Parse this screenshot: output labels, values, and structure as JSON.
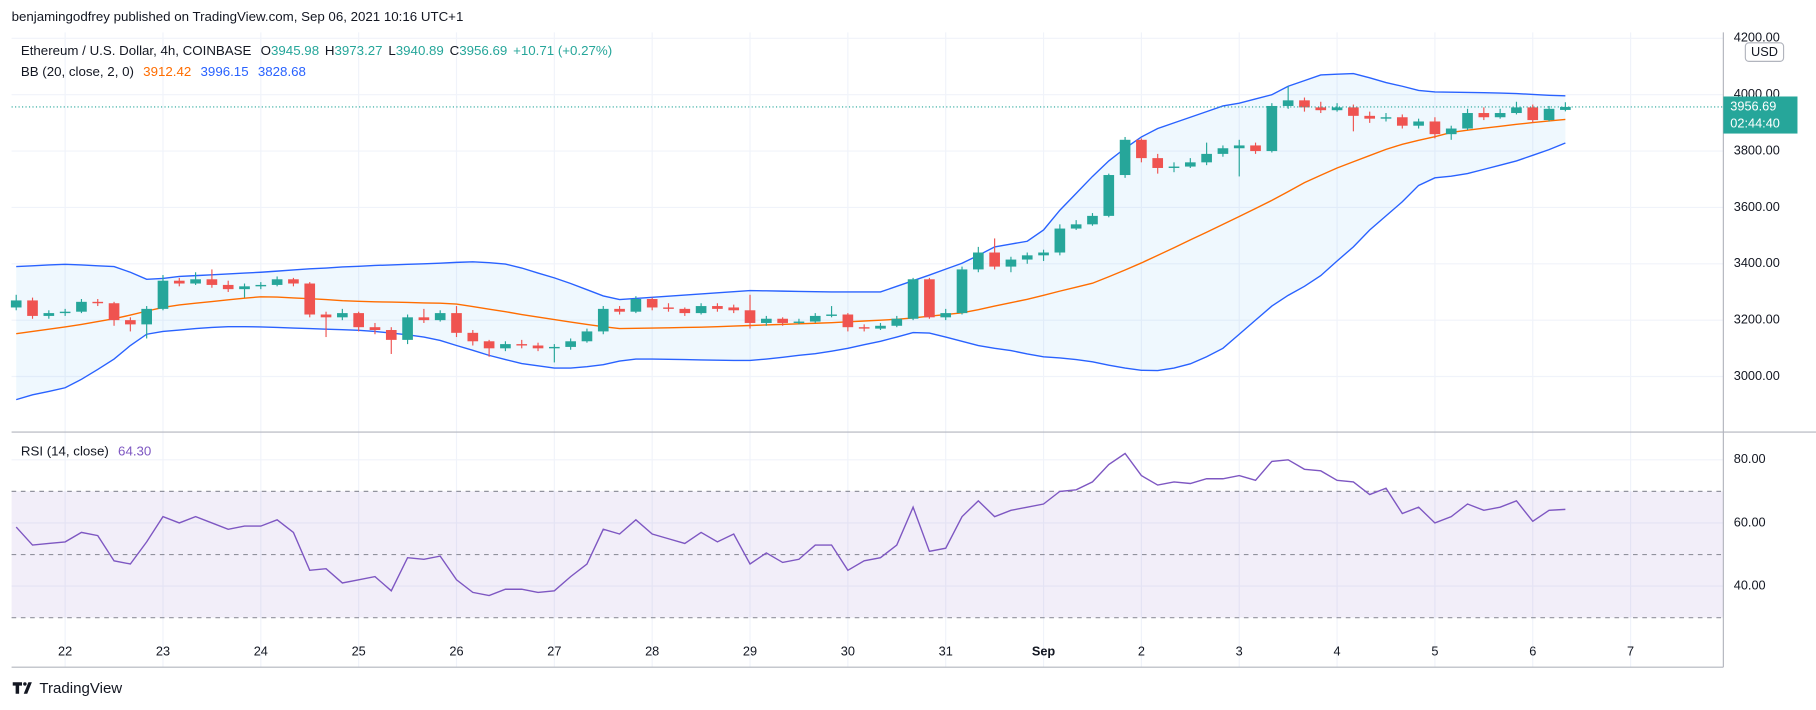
{
  "header": {
    "publisher": "benjamingodfrey published on TradingView.com, Sep 06, 2021 10:16 UTC+1"
  },
  "footer": {
    "brand": "TradingView"
  },
  "chart_data": [
    {
      "type": "candlestick",
      "currency": "USD",
      "countdown": "02:44:40",
      "legend": {
        "title": "Ethereum / U.S. Dollar, 4h, COINBASE",
        "fields": [
          "O",
          "H",
          "L",
          "C"
        ],
        "change": "+10.71 (+0.27%)"
      },
      "up_color": "#26a69a",
      "down_color": "#ef5350",
      "ylim": [
        2803,
        4221
      ],
      "yticks": [
        {
          "value": 4200,
          "label": "4200.00"
        },
        {
          "value": 4000,
          "label": "4000.00"
        },
        {
          "value": 3800,
          "label": "3800.00"
        },
        {
          "value": 3600,
          "label": "3600.00"
        },
        {
          "value": 3400,
          "label": "3400.00"
        },
        {
          "value": 3200,
          "label": "3200.00"
        },
        {
          "value": 3000,
          "label": "3000.00"
        }
      ],
      "grid": true,
      "open": [
        3245,
        3270,
        3215,
        3225,
        3230,
        3265,
        3260,
        3200,
        3185,
        3240,
        3340,
        3330,
        3345,
        3325,
        3310,
        3320,
        3325,
        3345,
        3330,
        3220,
        3210,
        3225,
        3175,
        3165,
        3130,
        3210,
        3200,
        3225,
        3155,
        3125,
        3100,
        3115,
        3110,
        3100,
        3105,
        3125,
        3160,
        3240,
        3230,
        3275,
        3245,
        3240,
        3225,
        3250,
        3245,
        3235,
        3190,
        3205,
        3190,
        3195,
        3215,
        3220,
        3175,
        3170,
        3180,
        3205,
        3345,
        3210,
        3225,
        3380,
        3440,
        3390,
        3415,
        3430,
        3440,
        3525,
        3540,
        3570,
        3715,
        3840,
        3775,
        3740,
        3745,
        3760,
        3790,
        3810,
        3820,
        3800,
        3960,
        3980,
        3955,
        3945,
        3955,
        3925,
        3915,
        3920,
        3890,
        3905,
        3860,
        3880,
        3935,
        3920,
        3935,
        3955,
        3910,
        3945.98
      ],
      "high": [
        3290,
        3280,
        3235,
        3240,
        3275,
        3275,
        3265,
        3210,
        3250,
        3360,
        3350,
        3370,
        3380,
        3340,
        3330,
        3335,
        3355,
        3350,
        3335,
        3230,
        3240,
        3230,
        3190,
        3175,
        3220,
        3240,
        3235,
        3250,
        3165,
        3130,
        3125,
        3130,
        3120,
        3115,
        3135,
        3170,
        3250,
        3250,
        3285,
        3280,
        3260,
        3245,
        3260,
        3260,
        3255,
        3290,
        3215,
        3210,
        3205,
        3225,
        3250,
        3225,
        3185,
        3190,
        3215,
        3350,
        3350,
        3240,
        3390,
        3460,
        3490,
        3425,
        3440,
        3450,
        3540,
        3555,
        3580,
        3720,
        3850,
        3845,
        3790,
        3760,
        3775,
        3830,
        3820,
        3840,
        3830,
        3970,
        4030,
        3990,
        3975,
        3970,
        3965,
        3940,
        3935,
        3930,
        3915,
        3920,
        3890,
        3950,
        3955,
        3950,
        3975,
        3965,
        3960,
        3973.27
      ],
      "low": [
        3235,
        3205,
        3205,
        3215,
        3225,
        3250,
        3180,
        3160,
        3135,
        3235,
        3320,
        3325,
        3315,
        3300,
        3280,
        3310,
        3320,
        3320,
        3210,
        3140,
        3200,
        3160,
        3150,
        3080,
        3115,
        3190,
        3195,
        3140,
        3110,
        3070,
        3090,
        3100,
        3090,
        3050,
        3095,
        3120,
        3150,
        3220,
        3225,
        3235,
        3230,
        3215,
        3220,
        3230,
        3225,
        3170,
        3180,
        3180,
        3185,
        3190,
        3210,
        3160,
        3160,
        3165,
        3175,
        3200,
        3205,
        3200,
        3220,
        3370,
        3380,
        3370,
        3400,
        3410,
        3430,
        3520,
        3535,
        3565,
        3705,
        3760,
        3720,
        3725,
        3740,
        3750,
        3780,
        3710,
        3790,
        3795,
        3950,
        3940,
        3935,
        3940,
        3870,
        3900,
        3905,
        3880,
        3880,
        3845,
        3840,
        3875,
        3910,
        3915,
        3930,
        3900,
        3905,
        3940.89
      ],
      "close": [
        3270,
        3215,
        3225,
        3230,
        3265,
        3260,
        3200,
        3185,
        3240,
        3340,
        3330,
        3345,
        3325,
        3310,
        3320,
        3325,
        3345,
        3330,
        3220,
        3210,
        3225,
        3175,
        3165,
        3130,
        3210,
        3200,
        3225,
        3155,
        3125,
        3100,
        3115,
        3110,
        3100,
        3105,
        3125,
        3160,
        3240,
        3230,
        3275,
        3245,
        3240,
        3225,
        3250,
        3240,
        3235,
        3190,
        3205,
        3190,
        3195,
        3215,
        3220,
        3175,
        3170,
        3180,
        3205,
        3345,
        3210,
        3225,
        3380,
        3440,
        3390,
        3415,
        3430,
        3440,
        3525,
        3540,
        3570,
        3715,
        3840,
        3775,
        3740,
        3745,
        3760,
        3790,
        3810,
        3820,
        3800,
        3960,
        3980,
        3955,
        3945,
        3955,
        3925,
        3915,
        3920,
        3890,
        3905,
        3860,
        3880,
        3935,
        3920,
        3935,
        3955,
        3910,
        3950,
        3956.69
      ],
      "indicator": {
        "name": "BB (20, close, 2, 0)",
        "fill": "#2196f3",
        "series": [
          {
            "color": "#2962ff",
            "values": [
              3390,
              3393,
              3396,
              3398,
              3396,
              3393,
              3390,
              3370,
              3345,
              3348,
              3355,
              3358,
              3361,
              3364,
              3367,
              3370,
              3374,
              3378,
              3382,
              3385,
              3389,
              3391,
              3394,
              3396,
              3398,
              3400,
              3402,
              3405,
              3407,
              3404,
              3399,
              3385,
              3367,
              3350,
              3330,
              3308,
              3286,
              3273,
              3277,
              3281,
              3285,
              3289,
              3293,
              3297,
              3301,
              3305,
              3304,
              3303,
              3302,
              3301,
              3300,
              3300,
              3300,
              3300,
              3320,
              3340,
              3360,
              3381,
              3402,
              3430,
              3460,
              3470,
              3480,
              3520,
              3590,
              3650,
              3710,
              3765,
              3810,
              3850,
              3880,
              3900,
              3920,
              3940,
              3960,
              3970,
              3985,
              4000,
              4030,
              4050,
              4070,
              4073,
              4075,
              4060,
              4043,
              4030,
              4015,
              4010,
              4009,
              4008,
              4007,
              4006,
              4004,
              4001,
              3998,
              3996.15
            ]
          },
          {
            "color": "#ff6d00",
            "values": [
              3152,
              3160,
              3168,
              3176,
              3185,
              3195,
              3205,
              3218,
              3232,
              3245,
              3254,
              3260,
              3266,
              3272,
              3278,
              3283,
              3282,
              3279,
              3276,
              3273,
              3269,
              3267,
              3265,
              3264,
              3263,
              3261,
              3260,
              3257,
              3248,
              3239,
              3230,
              3220,
              3211,
              3202,
              3193,
              3185,
              3177,
              3170,
              3171,
              3172,
              3173,
              3174,
              3175,
              3177,
              3179,
              3181,
              3183,
              3185,
              3187,
              3189,
              3191,
              3194,
              3197,
              3200,
              3203,
              3208,
              3214,
              3220,
              3226,
              3237,
              3250,
              3262,
              3274,
              3288,
              3303,
              3317,
              3331,
              3354,
              3378,
              3403,
              3430,
              3457,
              3485,
              3512,
              3540,
              3568,
              3596,
              3625,
              3656,
              3688,
              3714,
              3740,
              3762,
              3784,
              3806,
              3824,
              3838,
              3851,
              3866,
              3874,
              3881,
              3888,
              3895,
              3901,
              3907,
              3912.42
            ]
          },
          {
            "color": "#2962ff",
            "values": [
              2918,
              2935,
              2947,
              2960,
              2990,
              3025,
              3062,
              3110,
              3150,
              3160,
              3165,
              3170,
              3174,
              3177,
              3177,
              3176,
              3174,
              3172,
              3170,
              3168,
              3166,
              3164,
              3160,
              3154,
              3148,
              3140,
              3128,
              3110,
              3093,
              3075,
              3060,
              3046,
              3038,
              3030,
              3030,
              3035,
              3042,
              3055,
              3062,
              3062,
              3061,
              3060,
              3059,
              3058,
              3057,
              3057,
              3062,
              3068,
              3075,
              3081,
              3090,
              3100,
              3113,
              3125,
              3140,
              3156,
              3154,
              3140,
              3125,
              3110,
              3100,
              3092,
              3080,
              3070,
              3066,
              3060,
              3052,
              3040,
              3030,
              3022,
              3021,
              3030,
              3045,
              3070,
              3100,
              3150,
              3200,
              3250,
              3288,
              3320,
              3358,
              3410,
              3460,
              3520,
              3570,
              3620,
              3678,
              3705,
              3711,
              3720,
              3735,
              3750,
              3765,
              3785,
              3805,
              3828.68
            ]
          }
        ]
      }
    },
    {
      "type": "line",
      "color": "#7e57c2",
      "legend": {
        "title": "RSI (14, close)",
        "value": "64.30"
      },
      "ylim": [
        24.6,
        88.8
      ],
      "yticks": [
        {
          "value": 80,
          "label": "80.00"
        },
        {
          "value": 60,
          "label": "60.00"
        },
        {
          "value": 40,
          "label": "40.00"
        }
      ],
      "levels": [
        70,
        50,
        30
      ],
      "grid": true,
      "categories": [
        null,
        null,
        null,
        "22",
        null,
        null,
        null,
        null,
        null,
        "23",
        null,
        null,
        null,
        null,
        null,
        "24",
        null,
        null,
        null,
        null,
        null,
        "25",
        null,
        null,
        null,
        null,
        null,
        "26",
        null,
        null,
        null,
        null,
        null,
        "27",
        null,
        null,
        null,
        null,
        null,
        "28",
        null,
        null,
        null,
        null,
        null,
        "29",
        null,
        null,
        null,
        null,
        null,
        "30",
        null,
        null,
        null,
        null,
        null,
        "31",
        null,
        null,
        null,
        null,
        null,
        "Sep",
        null,
        null,
        null,
        null,
        null,
        "2",
        null,
        null,
        null,
        null,
        null,
        "3",
        null,
        null,
        null,
        null,
        null,
        "4",
        null,
        null,
        null,
        null,
        null,
        "5",
        null,
        null,
        null,
        null,
        null,
        "6",
        null,
        null,
        null,
        null,
        null,
        "7"
      ],
      "values": [
        58.7,
        53,
        53.5,
        54,
        57,
        56,
        48,
        47,
        54,
        62,
        60,
        62,
        60,
        58,
        59,
        59,
        61,
        57,
        45,
        45.5,
        41,
        42,
        43,
        38.5,
        49,
        48.5,
        49.5,
        42,
        38,
        37,
        39,
        39,
        38,
        38.5,
        43,
        47,
        58,
        56.5,
        61,
        56.5,
        55,
        53.5,
        57,
        54,
        56.5,
        47,
        50.5,
        47.5,
        48.5,
        53,
        53,
        45,
        48,
        49,
        53,
        65,
        51,
        52,
        62,
        67,
        62,
        64,
        65,
        66,
        70,
        70.5,
        73,
        78.5,
        82,
        75,
        72,
        73,
        72.5,
        74,
        74,
        75,
        73.5,
        79.5,
        80,
        77,
        76.5,
        73.5,
        73,
        69,
        71,
        63,
        65,
        60,
        62,
        66,
        64,
        65,
        67,
        60.5,
        64,
        64.3,
        null,
        null,
        null,
        null
      ]
    }
  ]
}
